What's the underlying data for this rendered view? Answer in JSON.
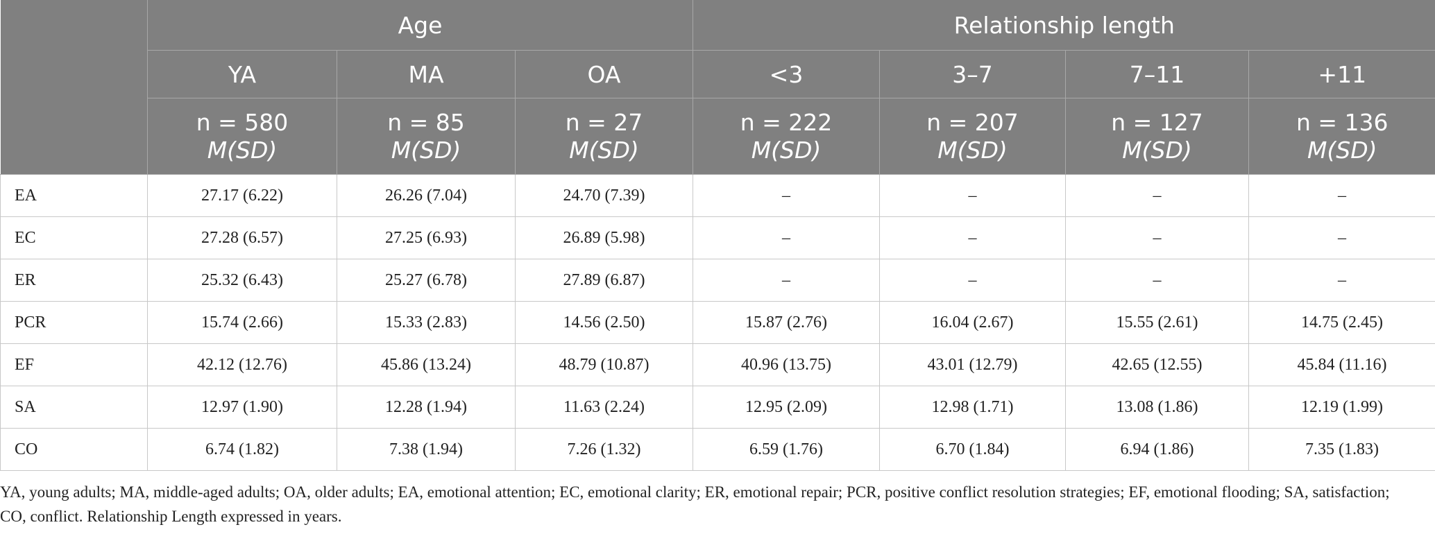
{
  "table": {
    "groups": [
      "Age",
      "Relationship length"
    ],
    "columns": [
      "YA",
      "MA",
      "OA",
      "<3",
      "3–7",
      "7–11",
      "+11"
    ],
    "samples": [
      "n = 580",
      "n = 85",
      "n = 27",
      "n = 222",
      "n = 207",
      "n = 127",
      "n = 136"
    ],
    "stat": [
      "M(SD)",
      "M(SD)",
      "M(SD)",
      "M(SD)",
      "M(SD)",
      "M(SD)",
      "M(SD)"
    ],
    "rows": [
      [
        "EA",
        "27.17 (6.22)",
        "26.26 (7.04)",
        "24.70 (7.39)",
        "–",
        "–",
        "–",
        "–"
      ],
      [
        "EC",
        "27.28 (6.57)",
        "27.25 (6.93)",
        "26.89 (5.98)",
        "–",
        "–",
        "–",
        "–"
      ],
      [
        "ER",
        "25.32 (6.43)",
        "25.27 (6.78)",
        "27.89 (6.87)",
        "–",
        "–",
        "–",
        "–"
      ],
      [
        "PCR",
        "15.74 (2.66)",
        "15.33 (2.83)",
        "14.56 (2.50)",
        "15.87 (2.76)",
        "16.04 (2.67)",
        "15.55 (2.61)",
        "14.75 (2.45)"
      ],
      [
        "EF",
        "42.12 (12.76)",
        "45.86 (13.24)",
        "48.79 (10.87)",
        "40.96 (13.75)",
        "43.01 (12.79)",
        "42.65 (12.55)",
        "45.84 (11.16)"
      ],
      [
        "SA",
        "12.97 (1.90)",
        "12.28 (1.94)",
        "11.63 (2.24)",
        "12.95 (2.09)",
        "12.98 (1.71)",
        "13.08 (1.86)",
        "12.19 (1.99)"
      ],
      [
        "CO",
        "6.74 (1.82)",
        "7.38 (1.94)",
        "7.26 (1.32)",
        "6.59 (1.76)",
        "6.70 (1.84)",
        "6.94 (1.86)",
        "7.35 (1.83)"
      ]
    ],
    "note": "YA, young adults; MA, middle-aged adults; OA, older adults; EA, emotional attention; EC, emotional clarity; ER, emotional repair; PCR, positive conflict resolution strategies; EF, emotional flooding; SA, satisfaction; CO, conflict. Relationship Length expressed in years."
  }
}
